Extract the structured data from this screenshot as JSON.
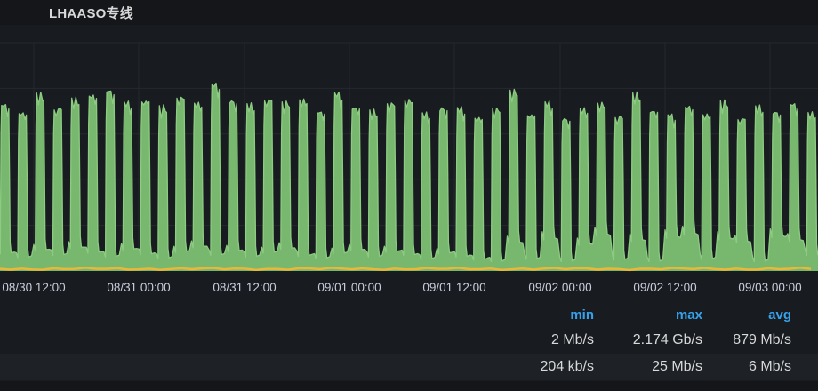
{
  "panel": {
    "title": "LHAASO专线"
  },
  "colors": {
    "green_fill": "#78B86E",
    "green_stroke": "#8CCB81",
    "yellow_line": "#EAB839",
    "header_blue": "#35a2eb",
    "grid": "#25282E",
    "panel_bg": "#181b1f",
    "page_bg": "#141619",
    "alt_row_bg": "#1e2126",
    "text": "#d8d9da",
    "axis_text": "#ccccdc"
  },
  "legend": {
    "headers": [
      "min",
      "max",
      "avg"
    ]
  },
  "chart_data": {
    "type": "area",
    "title": "LHAASO专线",
    "xlabel": "",
    "ylabel": "",
    "grid": true,
    "legend_position": "bottom-table",
    "x_tick_labels": [
      "08/30 12:00",
      "08/31 00:00",
      "08/31 12:00",
      "09/01 00:00",
      "09/01 12:00",
      "09/02 00:00",
      "09/02 12:00",
      "09/03 00:00"
    ],
    "x_tick_interval_hours": 12,
    "ylim_gbps": [
      0,
      2.7
    ],
    "y_gridline_step_gbps": 0.5,
    "series": [
      {
        "color": "#73BF69",
        "style": "area",
        "description": "periodic traffic pulses every ~2 hours, peaks ~1.7-2.1 Gb/s, valleys ~0.1-0.45 Gb/s",
        "stats": {
          "min": "2 Mb/s",
          "max": "2.174 Gb/s",
          "avg": "879 Mb/s"
        },
        "pulse_period_hours": 2,
        "pulse_peaks_gbps": [
          1.84,
          1.77,
          1.94,
          1.83,
          1.89,
          1.96,
          2.0,
          1.85,
          1.92,
          1.8,
          1.95,
          1.86,
          2.06,
          1.9,
          1.82,
          1.93,
          1.86,
          1.9,
          1.78,
          1.94,
          1.84,
          1.76,
          1.87,
          1.91,
          1.73,
          1.82,
          1.78,
          1.72,
          1.8,
          1.99,
          1.76,
          1.84,
          1.7,
          1.79,
          1.86,
          1.73,
          1.94,
          1.8,
          1.71,
          1.83,
          1.75,
          1.86,
          1.72,
          1.8,
          1.77,
          1.85,
          1.74,
          1.8
        ],
        "pulse_valleys_gbps": [
          0.22,
          0.17,
          0.26,
          0.2,
          0.29,
          0.23,
          0.18,
          0.27,
          0.21,
          0.16,
          0.24,
          0.3,
          0.2,
          0.25,
          0.18,
          0.23,
          0.28,
          0.19,
          0.16,
          0.22,
          0.26,
          0.18,
          0.24,
          0.2,
          0.15,
          0.22,
          0.18,
          0.14,
          0.12,
          0.35,
          0.15,
          0.4,
          0.12,
          0.33,
          0.45,
          0.14,
          0.38,
          0.12,
          0.42,
          0.46,
          0.15,
          0.4,
          0.36,
          0.12,
          0.43,
          0.38,
          0.2,
          0.3
        ]
      },
      {
        "color": "#EAB839",
        "style": "line",
        "description": "near-flat line just above zero",
        "stats": {
          "min": "204 kb/s",
          "max": "25 Mb/s",
          "avg": "6 Mb/s"
        },
        "approx_level_gbps": 0.02
      }
    ]
  }
}
